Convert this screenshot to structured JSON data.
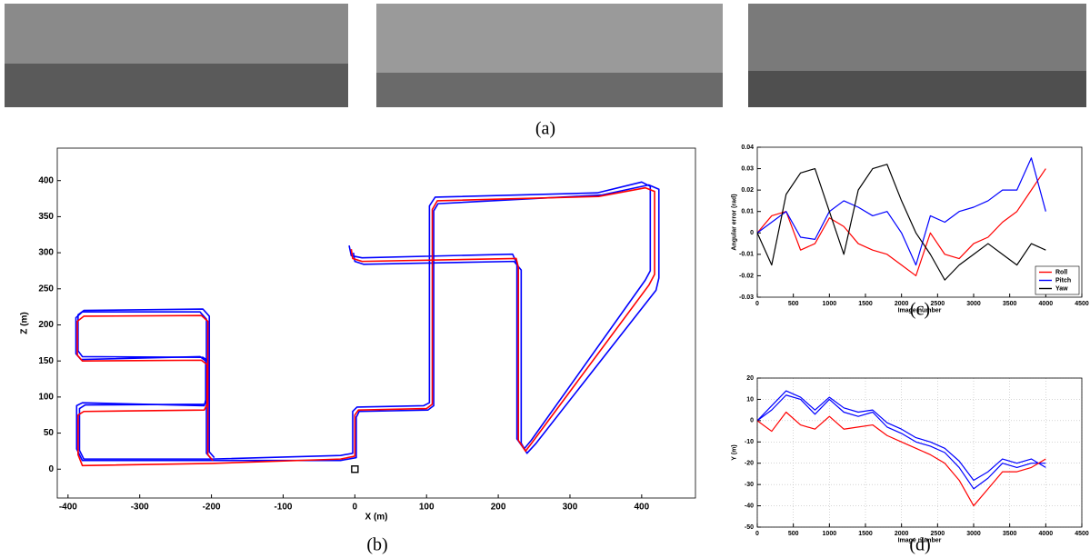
{
  "figure": {
    "labels": [
      "(a)",
      "(b)",
      "(c)",
      "(d)"
    ]
  },
  "chart_data": [
    {
      "type": "line",
      "xlabel": "X (m)",
      "ylabel": "Z (m)",
      "xlim": [
        -415,
        475
      ],
      "xticks": [
        -400,
        -300,
        -200,
        -100,
        0,
        100,
        200,
        300,
        400
      ],
      "ylim": [
        -40,
        445
      ],
      "yticks": [
        0,
        50,
        100,
        150,
        200,
        250,
        300,
        350,
        400
      ],
      "marker": {
        "x": 0,
        "y": 0
      },
      "series": [
        {
          "color": "#0000ff",
          "x": [
            -8,
            -5,
            10,
            220,
            226,
            226,
            236,
            246,
            405,
            412,
            412,
            400,
            338,
            112,
            104,
            104,
            96,
            3,
            -3,
            -3,
            -20,
            -200,
            -378,
            -384,
            -384,
            -376,
            -210,
            -204,
            -204,
            -212,
            -380,
            -386,
            -386,
            -378,
            -212,
            -203,
            -203,
            -196
          ],
          "values": [
            310,
            296,
            293,
            298,
            285,
            42,
            28,
            40,
            262,
            275,
            392,
            398,
            383,
            377,
            365,
            92,
            88,
            86,
            80,
            22,
            19,
            14,
            14,
            26,
            84,
            89,
            90,
            96,
            150,
            155,
            156,
            164,
            214,
            220,
            222,
            212,
            24,
            16
          ]
        },
        {
          "color": "#0000ff",
          "x": [
            -2,
            0,
            12,
            222,
            232,
            232,
            240,
            252,
            420,
            424,
            424,
            410,
            344,
            116,
            110,
            110,
            102,
            6,
            2,
            2,
            -20,
            -200,
            -380,
            -388,
            -388,
            -380,
            -210,
            -208,
            -208,
            -216,
            -382,
            -389,
            -389,
            -380,
            -216,
            -207,
            -207,
            -200
          ],
          "values": [
            300,
            288,
            284,
            288,
            276,
            36,
            22,
            35,
            248,
            265,
            388,
            394,
            380,
            368,
            358,
            88,
            82,
            80,
            72,
            16,
            12,
            12,
            12,
            28,
            88,
            92,
            88,
            96,
            150,
            156,
            152,
            160,
            210,
            218,
            218,
            208,
            22,
            14
          ]
        },
        {
          "color": "#ff0000",
          "x": [
            -5,
            -3,
            10,
            225,
            228,
            228,
            238,
            248,
            410,
            418,
            418,
            405,
            340,
            115,
            108,
            108,
            100,
            5,
            0,
            0,
            -20,
            -200,
            -380,
            -386,
            -386,
            -378,
            -210,
            -206,
            -206,
            -214,
            -380,
            -387,
            -387,
            -378,
            -214,
            -205,
            -205,
            -198
          ],
          "values": [
            305,
            292,
            288,
            292,
            280,
            40,
            25,
            38,
            255,
            270,
            385,
            390,
            378,
            372,
            360,
            90,
            84,
            82,
            75,
            18,
            14,
            8,
            5,
            20,
            75,
            80,
            82,
            90,
            145,
            151,
            150,
            158,
            205,
            212,
            213,
            205,
            20,
            12
          ]
        }
      ]
    },
    {
      "type": "line",
      "xlabel": "Image number",
      "ylabel": "Angular error (rad)",
      "xlim": [
        0,
        4500
      ],
      "xticks": [
        0,
        500,
        1000,
        1500,
        2000,
        2500,
        3000,
        3500,
        4000,
        4500
      ],
      "ylim": [
        -0.03,
        0.04
      ],
      "yticks": [
        -0.03,
        -0.02,
        -0.01,
        0,
        0.01,
        0.02,
        0.03,
        0.04
      ],
      "legend": "lower right",
      "x": [
        0,
        200,
        400,
        600,
        800,
        1000,
        1200,
        1400,
        1600,
        1800,
        2000,
        2200,
        2400,
        2600,
        2800,
        3000,
        3200,
        3400,
        3600,
        3800,
        4000
      ],
      "series": [
        {
          "name": "Roll",
          "color": "#ff0000",
          "values": [
            0,
            0.008,
            0.01,
            -0.008,
            -0.005,
            0.007,
            0.003,
            -0.005,
            -0.008,
            -0.01,
            -0.015,
            -0.02,
            0,
            -0.01,
            -0.012,
            -0.005,
            -0.002,
            0.005,
            0.01,
            0.02,
            0.03
          ]
        },
        {
          "name": "Pitch",
          "color": "#0000ff",
          "values": [
            0,
            0.005,
            0.01,
            -0.002,
            -0.003,
            0.01,
            0.015,
            0.012,
            0.008,
            0.01,
            0,
            -0.015,
            0.008,
            0.005,
            0.01,
            0.012,
            0.015,
            0.02,
            0.02,
            0.035,
            0.01
          ]
        },
        {
          "name": "Yaw",
          "color": "#000000",
          "values": [
            0,
            -0.015,
            0.018,
            0.028,
            0.03,
            0.01,
            -0.01,
            0.02,
            0.03,
            0.032,
            0.015,
            0,
            -0.01,
            -0.022,
            -0.015,
            -0.01,
            -0.005,
            -0.01,
            -0.015,
            -0.005,
            -0.008
          ]
        }
      ]
    },
    {
      "type": "line",
      "xlabel": "Image number",
      "ylabel": "Y (m)",
      "grid": true,
      "xlim": [
        0,
        4500
      ],
      "xticks": [
        0,
        500,
        1000,
        1500,
        2000,
        2500,
        3000,
        3500,
        4000,
        4500
      ],
      "ylim": [
        -50,
        20
      ],
      "yticks": [
        -50,
        -40,
        -30,
        -20,
        -10,
        0,
        10,
        20
      ],
      "x": [
        0,
        200,
        400,
        600,
        800,
        1000,
        1200,
        1400,
        1600,
        1800,
        2000,
        2200,
        2400,
        2600,
        2800,
        3000,
        3200,
        3400,
        3600,
        3800,
        4000
      ],
      "series": [
        {
          "color": "#0000ff",
          "values": [
            0,
            5,
            12,
            10,
            3,
            10,
            4,
            2,
            4,
            -3,
            -6,
            -10,
            -12,
            -15,
            -22,
            -32,
            -27,
            -20,
            -22,
            -20,
            -20
          ]
        },
        {
          "color": "#0000ff",
          "values": [
            0,
            7,
            14,
            11,
            5,
            11,
            6,
            4,
            5,
            -1,
            -4,
            -8,
            -10,
            -13,
            -19,
            -28,
            -24,
            -18,
            -20,
            -18,
            -22
          ]
        },
        {
          "color": "#ff0000",
          "values": [
            0,
            -5,
            4,
            -2,
            -4,
            2,
            -4,
            -3,
            -2,
            -7,
            -10,
            -13,
            -16,
            -20,
            -28,
            -40,
            -32,
            -24,
            -24,
            -22,
            -18
          ]
        }
      ]
    }
  ]
}
